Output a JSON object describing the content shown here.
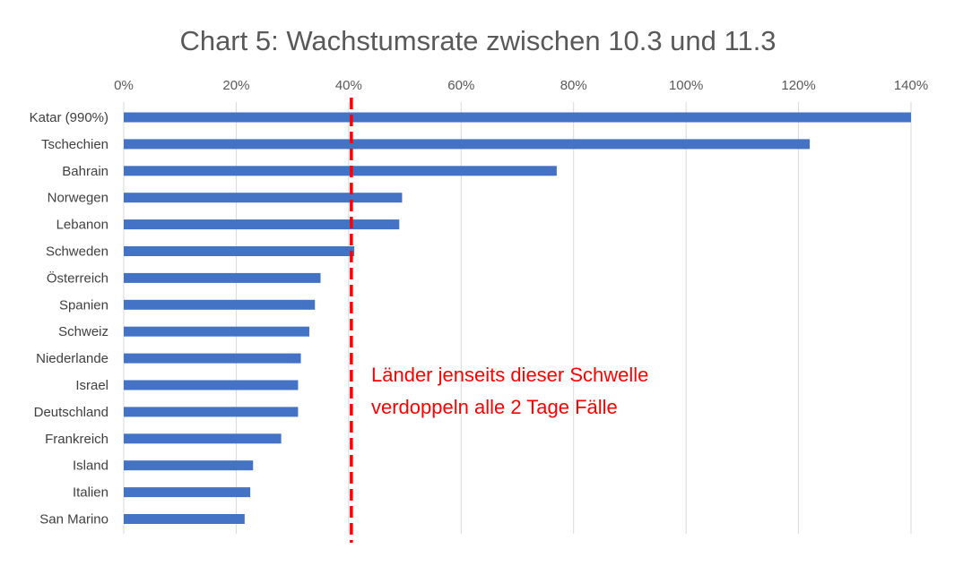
{
  "chart_data": {
    "type": "bar",
    "orientation": "horizontal",
    "title": "Chart 5: Wachstumsrate zwischen 10.3 und 11.3",
    "xlabel": "",
    "ylabel": "",
    "xlim": [
      0,
      140
    ],
    "x_ticks": [
      0,
      20,
      40,
      60,
      80,
      100,
      120,
      140
    ],
    "x_tick_labels": [
      "0%",
      "20%",
      "40%",
      "60%",
      "80%",
      "100%",
      "120%",
      "140%"
    ],
    "grid": true,
    "bar_color": "#4472C4",
    "grid_color": "#d9d9d9",
    "categories": [
      "Katar (990%)",
      "Tschechien",
      "Bahrain",
      "Norwegen",
      "Lebanon",
      "Schweden",
      "Österreich",
      "Spanien",
      "Schweiz",
      "Niederlande",
      "Israel",
      "Deutschland",
      "Frankreich",
      "Island",
      "Italien",
      "San Marino"
    ],
    "values": [
      140,
      122,
      77,
      49.5,
      49,
      41,
      35,
      34,
      33,
      31.5,
      31,
      31,
      28,
      23,
      22.5,
      21.5
    ],
    "threshold": {
      "value": 40,
      "color": "#ff0000",
      "style": "dashed",
      "annotation_lines": [
        "Länder jenseits dieser Schwelle",
        "verdoppeln alle 2 Tage Fälle"
      ]
    }
  }
}
